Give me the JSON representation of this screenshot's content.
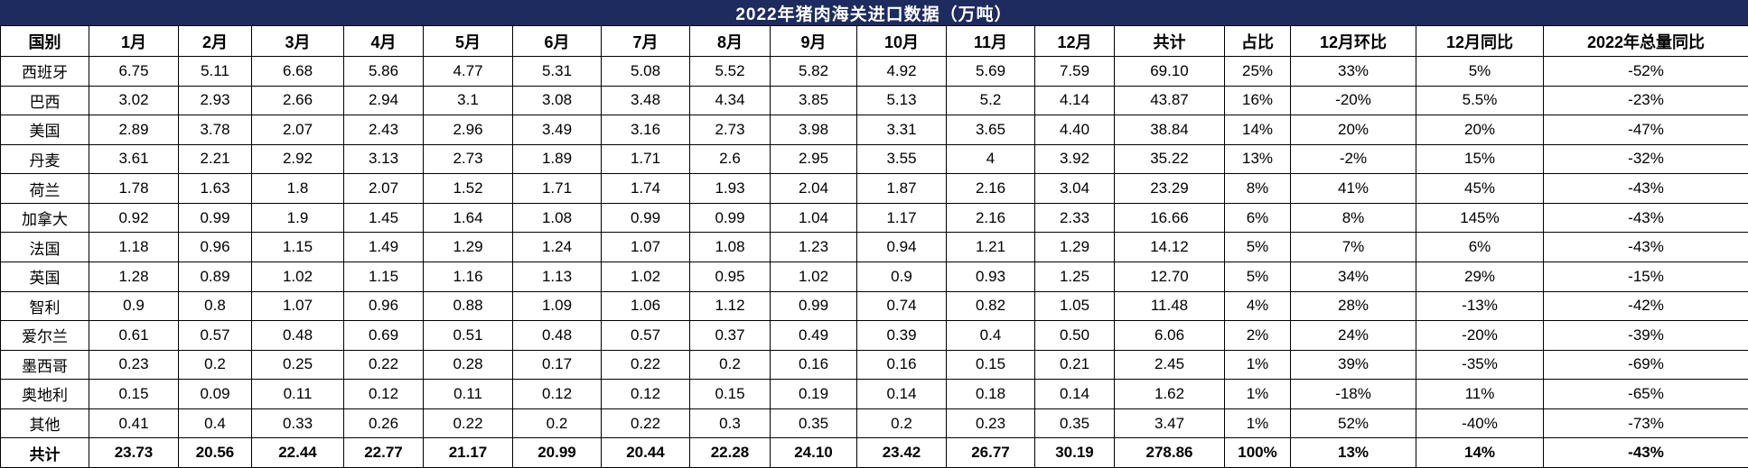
{
  "chart_data": {
    "type": "table",
    "title": "2022年猪肉海关进口数据（万吨）",
    "columns": [
      "国别",
      "1月",
      "2月",
      "3月",
      "4月",
      "5月",
      "6月",
      "7月",
      "8月",
      "9月",
      "10月",
      "11月",
      "12月",
      "共计",
      "占比",
      "12月环比",
      "12月同比",
      "2022年总量同比"
    ],
    "rows": [
      [
        "西班牙",
        "6.75",
        "5.11",
        "6.68",
        "5.86",
        "4.77",
        "5.31",
        "5.08",
        "5.52",
        "5.82",
        "4.92",
        "5.69",
        "7.59",
        "69.10",
        "25%",
        "33%",
        "5%",
        "-52%"
      ],
      [
        "巴西",
        "3.02",
        "2.93",
        "2.66",
        "2.94",
        "3.1",
        "3.08",
        "3.48",
        "4.34",
        "3.85",
        "5.13",
        "5.2",
        "4.14",
        "43.87",
        "16%",
        "-20%",
        "5.5%",
        "-23%"
      ],
      [
        "美国",
        "2.89",
        "3.78",
        "2.07",
        "2.43",
        "2.96",
        "3.49",
        "3.16",
        "2.73",
        "3.98",
        "3.31",
        "3.65",
        "4.40",
        "38.84",
        "14%",
        "20%",
        "20%",
        "-47%"
      ],
      [
        "丹麦",
        "3.61",
        "2.21",
        "2.92",
        "3.13",
        "2.73",
        "1.89",
        "1.71",
        "2.6",
        "2.95",
        "3.55",
        "4",
        "3.92",
        "35.22",
        "13%",
        "-2%",
        "15%",
        "-32%"
      ],
      [
        "荷兰",
        "1.78",
        "1.63",
        "1.8",
        "2.07",
        "1.52",
        "1.71",
        "1.74",
        "1.93",
        "2.04",
        "1.87",
        "2.16",
        "3.04",
        "23.29",
        "8%",
        "41%",
        "45%",
        "-43%"
      ],
      [
        "加拿大",
        "0.92",
        "0.99",
        "1.9",
        "1.45",
        "1.64",
        "1.08",
        "0.99",
        "0.99",
        "1.04",
        "1.17",
        "2.16",
        "2.33",
        "16.66",
        "6%",
        "8%",
        "145%",
        "-43%"
      ],
      [
        "法国",
        "1.18",
        "0.96",
        "1.15",
        "1.49",
        "1.29",
        "1.24",
        "1.07",
        "1.08",
        "1.23",
        "0.94",
        "1.21",
        "1.29",
        "14.12",
        "5%",
        "7%",
        "6%",
        "-43%"
      ],
      [
        "英国",
        "1.28",
        "0.89",
        "1.02",
        "1.15",
        "1.16",
        "1.13",
        "1.02",
        "0.95",
        "1.02",
        "0.9",
        "0.93",
        "1.25",
        "12.70",
        "5%",
        "34%",
        "29%",
        "-15%"
      ],
      [
        "智利",
        "0.9",
        "0.8",
        "1.07",
        "0.96",
        "0.88",
        "1.09",
        "1.06",
        "1.12",
        "0.99",
        "0.74",
        "0.82",
        "1.05",
        "11.48",
        "4%",
        "28%",
        "-13%",
        "-42%"
      ],
      [
        "爱尔兰",
        "0.61",
        "0.57",
        "0.48",
        "0.69",
        "0.51",
        "0.48",
        "0.57",
        "0.37",
        "0.49",
        "0.39",
        "0.4",
        "0.50",
        "6.06",
        "2%",
        "24%",
        "-20%",
        "-39%"
      ],
      [
        "墨西哥",
        "0.23",
        "0.2",
        "0.25",
        "0.22",
        "0.28",
        "0.17",
        "0.22",
        "0.2",
        "0.16",
        "0.16",
        "0.15",
        "0.21",
        "2.45",
        "1%",
        "39%",
        "-35%",
        "-69%"
      ],
      [
        "奥地利",
        "0.15",
        "0.09",
        "0.11",
        "0.12",
        "0.11",
        "0.12",
        "0.12",
        "0.15",
        "0.19",
        "0.14",
        "0.18",
        "0.14",
        "1.62",
        "1%",
        "-18%",
        "11%",
        "-65%"
      ],
      [
        "其他",
        "0.41",
        "0.4",
        "0.33",
        "0.26",
        "0.22",
        "0.2",
        "0.22",
        "0.3",
        "0.35",
        "0.2",
        "0.23",
        "0.35",
        "3.47",
        "1%",
        "52%",
        "-40%",
        "-73%"
      ]
    ],
    "total_row": [
      "共计",
      "23.73",
      "20.56",
      "22.44",
      "22.77",
      "21.17",
      "20.99",
      "20.44",
      "22.28",
      "24.10",
      "23.42",
      "26.77",
      "30.19",
      "278.86",
      "100%",
      "13%",
      "14%",
      "-43%"
    ]
  },
  "colors": {
    "title_background": "#1e2b5e",
    "title_text": "#ffffff",
    "grid_border": "#000000",
    "cell_text": "#000000"
  }
}
